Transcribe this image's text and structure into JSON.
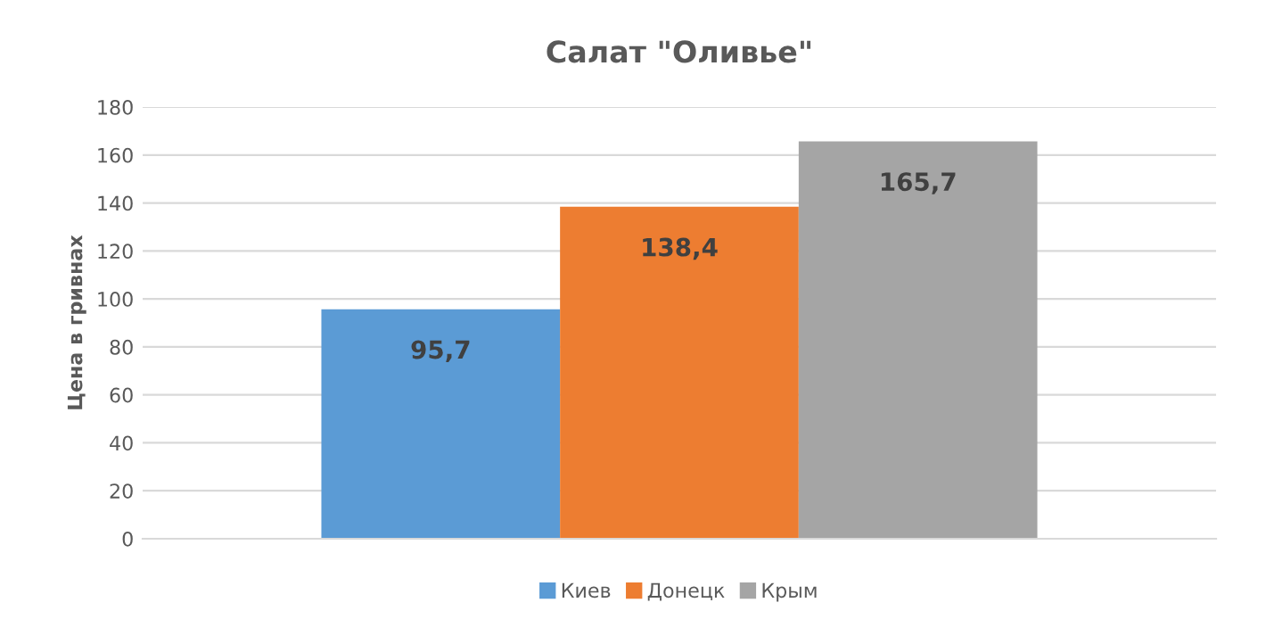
{
  "chart_data": {
    "type": "bar",
    "title": "Салат \"Оливье\"",
    "ylabel": "Цена в гривнах",
    "categories": [
      null
    ],
    "series": [
      {
        "name": "Киев",
        "color": "#5b9bd5",
        "values": [
          95.7
        ],
        "value_labels": [
          "95,7"
        ]
      },
      {
        "name": "Донецк",
        "color": "#ed7d31",
        "values": [
          138.4
        ],
        "value_labels": [
          "138,4"
        ]
      },
      {
        "name": "Крым",
        "color": "#a5a5a5",
        "values": [
          165.7
        ],
        "value_labels": [
          "165,7"
        ]
      }
    ],
    "ylim": [
      0,
      180
    ],
    "yticks": [
      0,
      20,
      40,
      60,
      80,
      100,
      120,
      140,
      160,
      180
    ],
    "grid": "y",
    "legend": "bottom"
  }
}
